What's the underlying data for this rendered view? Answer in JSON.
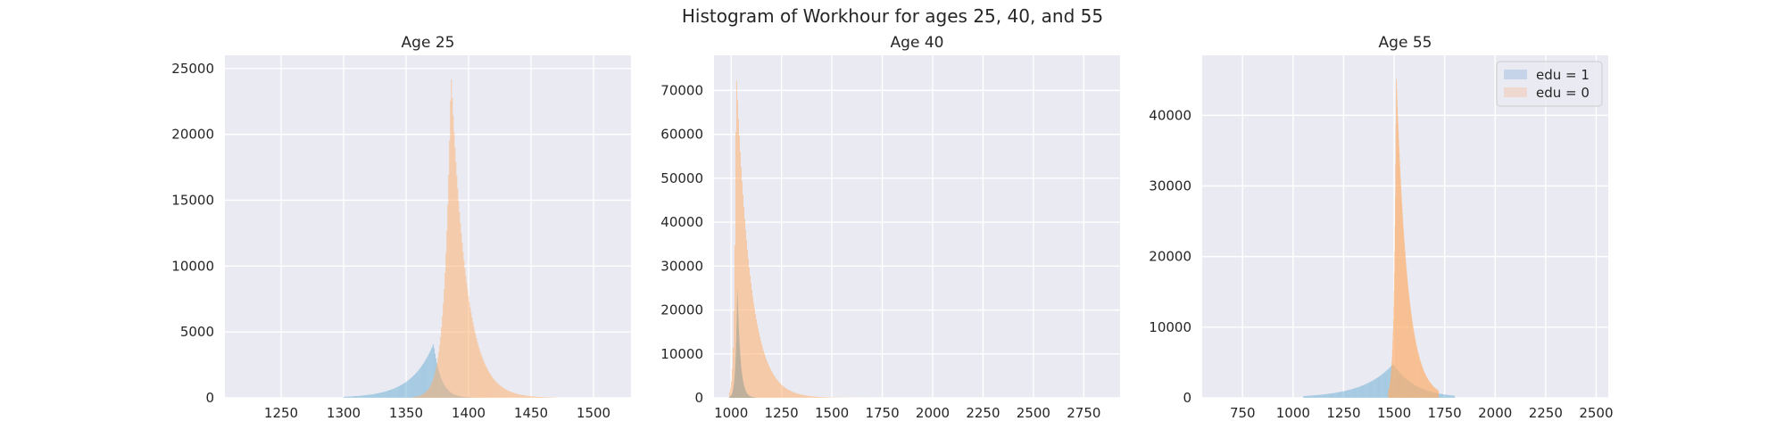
{
  "chart_data": {
    "suptitle": "Histogram of Workhour for ages 25, 40, and 55",
    "colors": {
      "edu1": "#6baed6",
      "edu0": "#fdae6b",
      "axes_bg": "#eaeaf2",
      "grid": "#ffffff",
      "legend_edu1": "#c6d4ea",
      "legend_edu0": "#efd8d0"
    },
    "legend": {
      "placement": "top-right",
      "panel": 2,
      "entries": [
        "edu = 1",
        "edu = 0"
      ]
    },
    "panels": [
      {
        "type": "histogram",
        "title": "Age 25",
        "xlim": [
          1205,
          1530
        ],
        "ylim": [
          0,
          26000
        ],
        "xticks": [
          1250,
          1300,
          1350,
          1400,
          1450,
          1500
        ],
        "yticks": [
          0,
          5000,
          10000,
          15000,
          20000,
          25000
        ],
        "grid": true,
        "series": [
          {
            "name": "edu = 1",
            "shape": {
              "peak_x": 1372,
              "peak_y": 4100,
              "left_width": 18,
              "right_width": 6,
              "x_min": 1300,
              "x_max": 1410
            }
          },
          {
            "name": "edu = 0",
            "shape": {
              "peak_x": 1386,
              "peak_y": 24700,
              "left_width": 5,
              "right_width": 12,
              "x_min": 1355,
              "x_max": 1470
            }
          }
        ]
      },
      {
        "type": "histogram",
        "title": "Age 40",
        "xlim": [
          915,
          2930
        ],
        "ylim": [
          0,
          78000
        ],
        "xticks": [
          1000,
          1250,
          1500,
          1750,
          2000,
          2250,
          2500,
          2750
        ],
        "yticks": [
          0,
          10000,
          20000,
          30000,
          40000,
          50000,
          60000,
          70000
        ],
        "grid": true,
        "series": [
          {
            "name": "edu = 1",
            "shape": {
              "peak_x": 1030,
              "peak_y": 25000,
              "left_width": 8,
              "right_width": 15,
              "x_min": 990,
              "x_max": 1120
            }
          },
          {
            "name": "edu = 0",
            "shape": {
              "peak_x": 1025,
              "peak_y": 75000,
              "left_width": 8,
              "right_width": 70,
              "x_min": 990,
              "x_max": 1700
            }
          }
        ]
      },
      {
        "type": "histogram",
        "title": "Age 55",
        "xlim": [
          550,
          2560
        ],
        "ylim": [
          0,
          48500
        ],
        "xticks": [
          750,
          1000,
          1250,
          1500,
          1750,
          2000,
          2250,
          2500
        ],
        "yticks": [
          0,
          10000,
          20000,
          30000,
          40000
        ],
        "grid": true,
        "series": [
          {
            "name": "edu = 1",
            "shape": {
              "peak_x": 1495,
              "peak_y": 4800,
              "left_width": 150,
              "right_width": 110,
              "x_min": 1050,
              "x_max": 1800
            }
          },
          {
            "name": "edu = 0",
            "shape": {
              "peak_x": 1510,
              "peak_y": 46000,
              "left_width": 10,
              "right_width": 55,
              "x_min": 1470,
              "x_max": 1720
            }
          }
        ]
      }
    ]
  }
}
